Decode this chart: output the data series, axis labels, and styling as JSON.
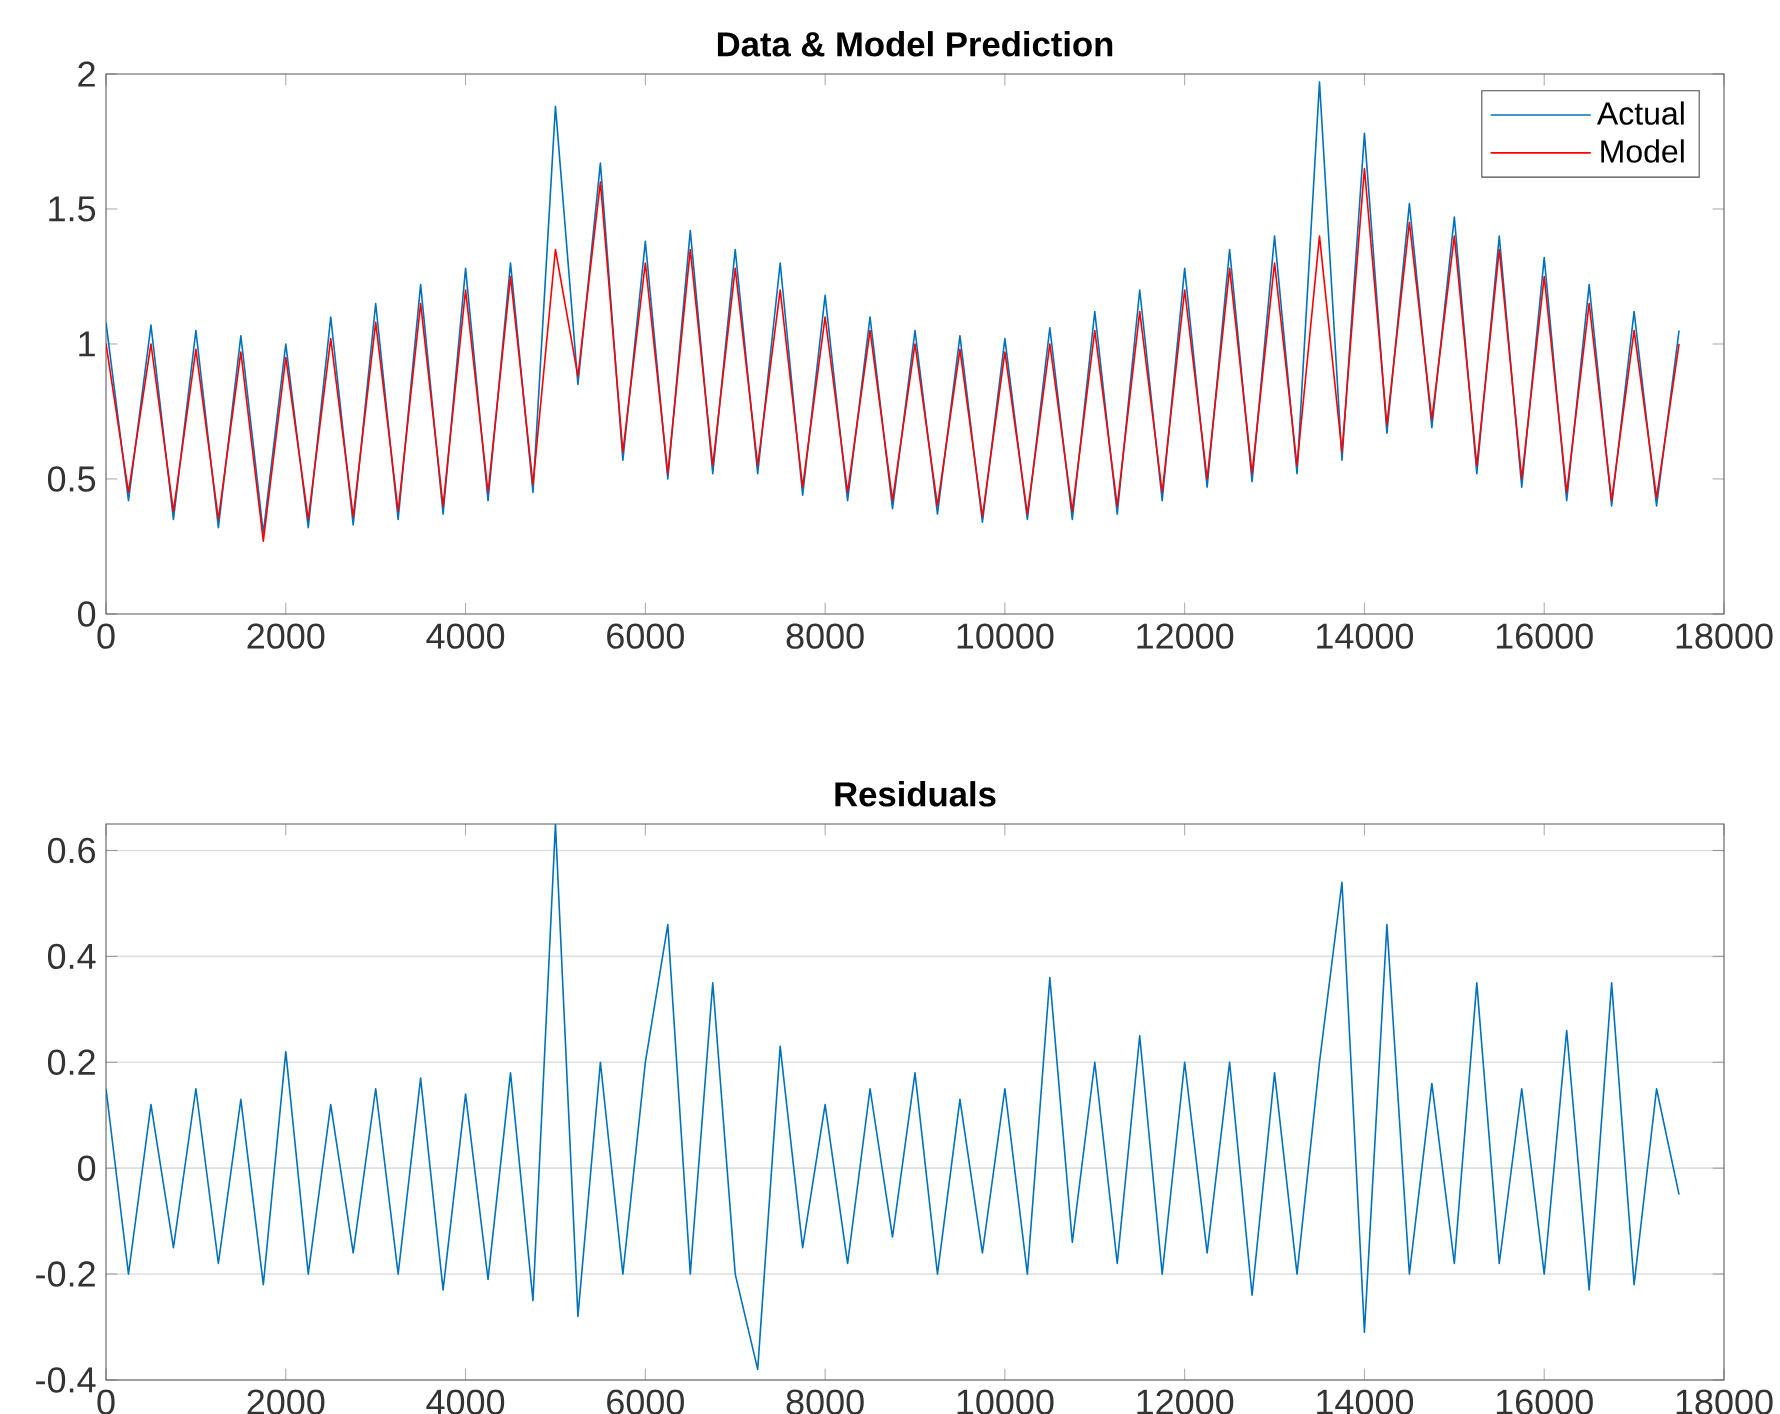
{
  "chart_data": [
    {
      "type": "line",
      "title": "Data & Model Prediction",
      "x": [
        0,
        250,
        500,
        750,
        1000,
        1250,
        1500,
        1750,
        2000,
        2250,
        2500,
        2750,
        3000,
        3250,
        3500,
        3750,
        4000,
        4250,
        4500,
        4750,
        5000,
        5250,
        5500,
        5750,
        6000,
        6250,
        6500,
        6750,
        7000,
        7250,
        7500,
        7750,
        8000,
        8250,
        8500,
        8750,
        9000,
        9250,
        9500,
        9750,
        10000,
        10250,
        10500,
        10750,
        11000,
        11250,
        11500,
        11750,
        12000,
        12250,
        12500,
        12750,
        13000,
        13250,
        13500,
        13750,
        14000,
        14250,
        14500,
        14750,
        15000,
        15250,
        15500,
        15750,
        16000,
        16250,
        16500,
        16750,
        17000,
        17250,
        17500
      ],
      "xlim": [
        0,
        18000
      ],
      "xticks": [
        0,
        2000,
        4000,
        6000,
        8000,
        10000,
        12000,
        14000,
        16000,
        18000
      ],
      "ylim": [
        0,
        2
      ],
      "yticks": [
        0,
        0.5,
        1,
        1.5,
        2
      ],
      "legend": "top right",
      "grid": false,
      "series": [
        {
          "name": "Actual",
          "color": "#0072bd",
          "values": [
            1.08,
            0.42,
            1.07,
            0.35,
            1.05,
            0.32,
            1.03,
            0.3,
            1.0,
            0.32,
            1.1,
            0.33,
            1.15,
            0.35,
            1.22,
            0.37,
            1.28,
            0.42,
            1.3,
            0.45,
            1.88,
            0.85,
            1.67,
            0.57,
            1.38,
            0.5,
            1.42,
            0.52,
            1.35,
            0.52,
            1.3,
            0.44,
            1.18,
            0.42,
            1.1,
            0.39,
            1.05,
            0.37,
            1.03,
            0.34,
            1.02,
            0.35,
            1.06,
            0.35,
            1.12,
            0.37,
            1.2,
            0.42,
            1.28,
            0.47,
            1.35,
            0.49,
            1.4,
            0.52,
            1.97,
            0.57,
            1.78,
            0.67,
            1.52,
            0.69,
            1.47,
            0.52,
            1.4,
            0.47,
            1.32,
            0.42,
            1.22,
            0.4,
            1.12,
            0.4,
            1.05
          ]
        },
        {
          "name": "Model",
          "color": "#ff0000",
          "values": [
            1.0,
            0.45,
            1.0,
            0.38,
            0.98,
            0.35,
            0.97,
            0.27,
            0.95,
            0.35,
            1.02,
            0.36,
            1.08,
            0.38,
            1.15,
            0.4,
            1.2,
            0.45,
            1.25,
            0.48,
            1.35,
            0.88,
            1.6,
            0.6,
            1.3,
            0.52,
            1.35,
            0.55,
            1.28,
            0.55,
            1.2,
            0.47,
            1.1,
            0.45,
            1.05,
            0.42,
            1.0,
            0.4,
            0.98,
            0.36,
            0.97,
            0.37,
            1.0,
            0.38,
            1.05,
            0.4,
            1.12,
            0.45,
            1.2,
            0.5,
            1.28,
            0.52,
            1.3,
            0.55,
            1.4,
            0.6,
            1.65,
            0.7,
            1.45,
            0.72,
            1.4,
            0.55,
            1.35,
            0.5,
            1.25,
            0.45,
            1.15,
            0.42,
            1.05,
            0.43,
            1.0
          ]
        }
      ]
    },
    {
      "type": "line",
      "title": "Residuals",
      "x": [
        0,
        250,
        500,
        750,
        1000,
        1250,
        1500,
        1750,
        2000,
        2250,
        2500,
        2750,
        3000,
        3250,
        3500,
        3750,
        4000,
        4250,
        4500,
        4750,
        5000,
        5250,
        5500,
        5750,
        6000,
        6250,
        6500,
        6750,
        7000,
        7250,
        7500,
        7750,
        8000,
        8250,
        8500,
        8750,
        9000,
        9250,
        9500,
        9750,
        10000,
        10250,
        10500,
        10750,
        11000,
        11250,
        11500,
        11750,
        12000,
        12250,
        12500,
        12750,
        13000,
        13250,
        13500,
        13750,
        14000,
        14250,
        14500,
        14750,
        15000,
        15250,
        15500,
        15750,
        16000,
        16250,
        16500,
        16750,
        17000,
        17250,
        17500
      ],
      "xlim": [
        0,
        18000
      ],
      "xticks": [
        0,
        2000,
        4000,
        6000,
        8000,
        10000,
        12000,
        14000,
        16000,
        18000
      ],
      "ylim": [
        -0.4,
        0.65
      ],
      "yticks": [
        -0.4,
        -0.2,
        0,
        0.2,
        0.4,
        0.6
      ],
      "grid": "y",
      "series": [
        {
          "color": "#0072bd",
          "values": [
            0.15,
            -0.2,
            0.12,
            -0.15,
            0.15,
            -0.18,
            0.13,
            -0.22,
            0.22,
            -0.2,
            0.12,
            -0.16,
            0.15,
            -0.2,
            0.17,
            -0.23,
            0.14,
            -0.21,
            0.18,
            -0.25,
            0.65,
            -0.28,
            0.2,
            -0.2,
            0.2,
            0.46,
            -0.2,
            0.35,
            -0.2,
            -0.38,
            0.23,
            -0.15,
            0.12,
            -0.18,
            0.15,
            -0.13,
            0.18,
            -0.2,
            0.13,
            -0.16,
            0.15,
            -0.2,
            0.36,
            -0.14,
            0.2,
            -0.18,
            0.25,
            -0.2,
            0.2,
            -0.16,
            0.2,
            -0.24,
            0.18,
            -0.2,
            0.2,
            0.54,
            -0.31,
            0.46,
            -0.2,
            0.16,
            -0.18,
            0.35,
            -0.18,
            0.15,
            -0.2,
            0.26,
            -0.23,
            0.35,
            -0.22,
            0.15,
            -0.05
          ]
        }
      ]
    }
  ]
}
